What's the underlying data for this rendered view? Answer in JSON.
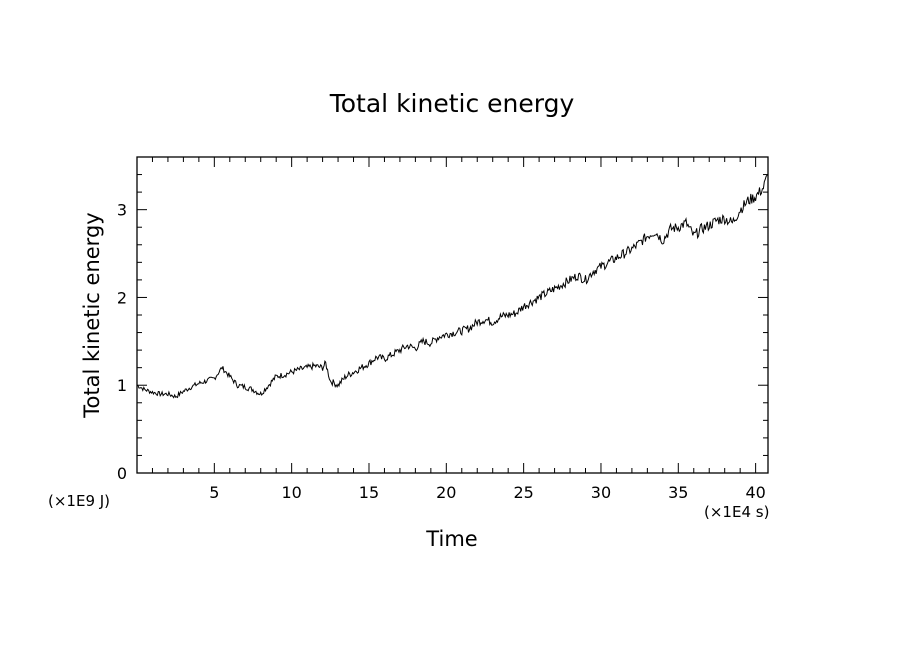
{
  "chart_data": {
    "type": "line",
    "title": "Total kinetic energy",
    "xlabel": "Time",
    "ylabel": "Total kinetic energy",
    "x_unit_note": "(×1E4 s)",
    "y_unit_note": "(×1E9 J)",
    "xlim": [
      0,
      40.8
    ],
    "ylim": [
      0,
      3.6
    ],
    "x_ticks": [
      5,
      10,
      15,
      20,
      25,
      30,
      35,
      40
    ],
    "y_ticks": [
      0,
      1,
      2,
      3
    ],
    "grid": false,
    "series": [
      {
        "color": "#000000",
        "x": [
          0,
          0.5,
          1,
          1.5,
          2,
          2.5,
          3,
          3.5,
          4,
          4.5,
          5,
          5.5,
          6,
          6.5,
          7,
          7.5,
          8,
          8.5,
          9,
          9.5,
          10,
          10.5,
          11,
          11.5,
          12,
          12.2,
          12.5,
          13,
          13.5,
          14,
          14.5,
          15,
          15.5,
          16,
          16.5,
          17,
          17.5,
          18,
          18.5,
          19,
          19.5,
          20,
          20.5,
          21,
          21.5,
          22,
          22.5,
          23,
          23.5,
          24,
          24.5,
          25,
          25.5,
          26,
          26.5,
          27,
          27.5,
          28,
          28.5,
          29,
          29.5,
          30,
          30.5,
          31,
          31.5,
          32,
          32.5,
          33,
          33.5,
          34,
          34.5,
          35,
          35.5,
          36,
          36.5,
          37,
          37.5,
          38,
          38.5,
          39,
          39.5,
          40,
          40.5,
          40.8
        ],
        "y": [
          1.0,
          0.95,
          0.92,
          0.9,
          0.9,
          0.87,
          0.93,
          0.98,
          1.02,
          1.05,
          1.08,
          1.2,
          1.1,
          1.0,
          0.98,
          0.95,
          0.9,
          1.0,
          1.1,
          1.12,
          1.15,
          1.18,
          1.2,
          1.22,
          1.2,
          1.25,
          1.05,
          1.0,
          1.1,
          1.15,
          1.2,
          1.25,
          1.32,
          1.3,
          1.35,
          1.4,
          1.45,
          1.42,
          1.5,
          1.48,
          1.55,
          1.58,
          1.6,
          1.62,
          1.65,
          1.72,
          1.75,
          1.72,
          1.78,
          1.8,
          1.82,
          1.9,
          1.95,
          2.0,
          2.05,
          2.1,
          2.15,
          2.2,
          2.25,
          2.2,
          2.3,
          2.35,
          2.4,
          2.45,
          2.5,
          2.55,
          2.62,
          2.7,
          2.75,
          2.65,
          2.78,
          2.8,
          2.85,
          2.7,
          2.78,
          2.82,
          2.88,
          2.9,
          2.85,
          3.0,
          3.1,
          3.15,
          3.25,
          3.4
        ]
      }
    ]
  }
}
